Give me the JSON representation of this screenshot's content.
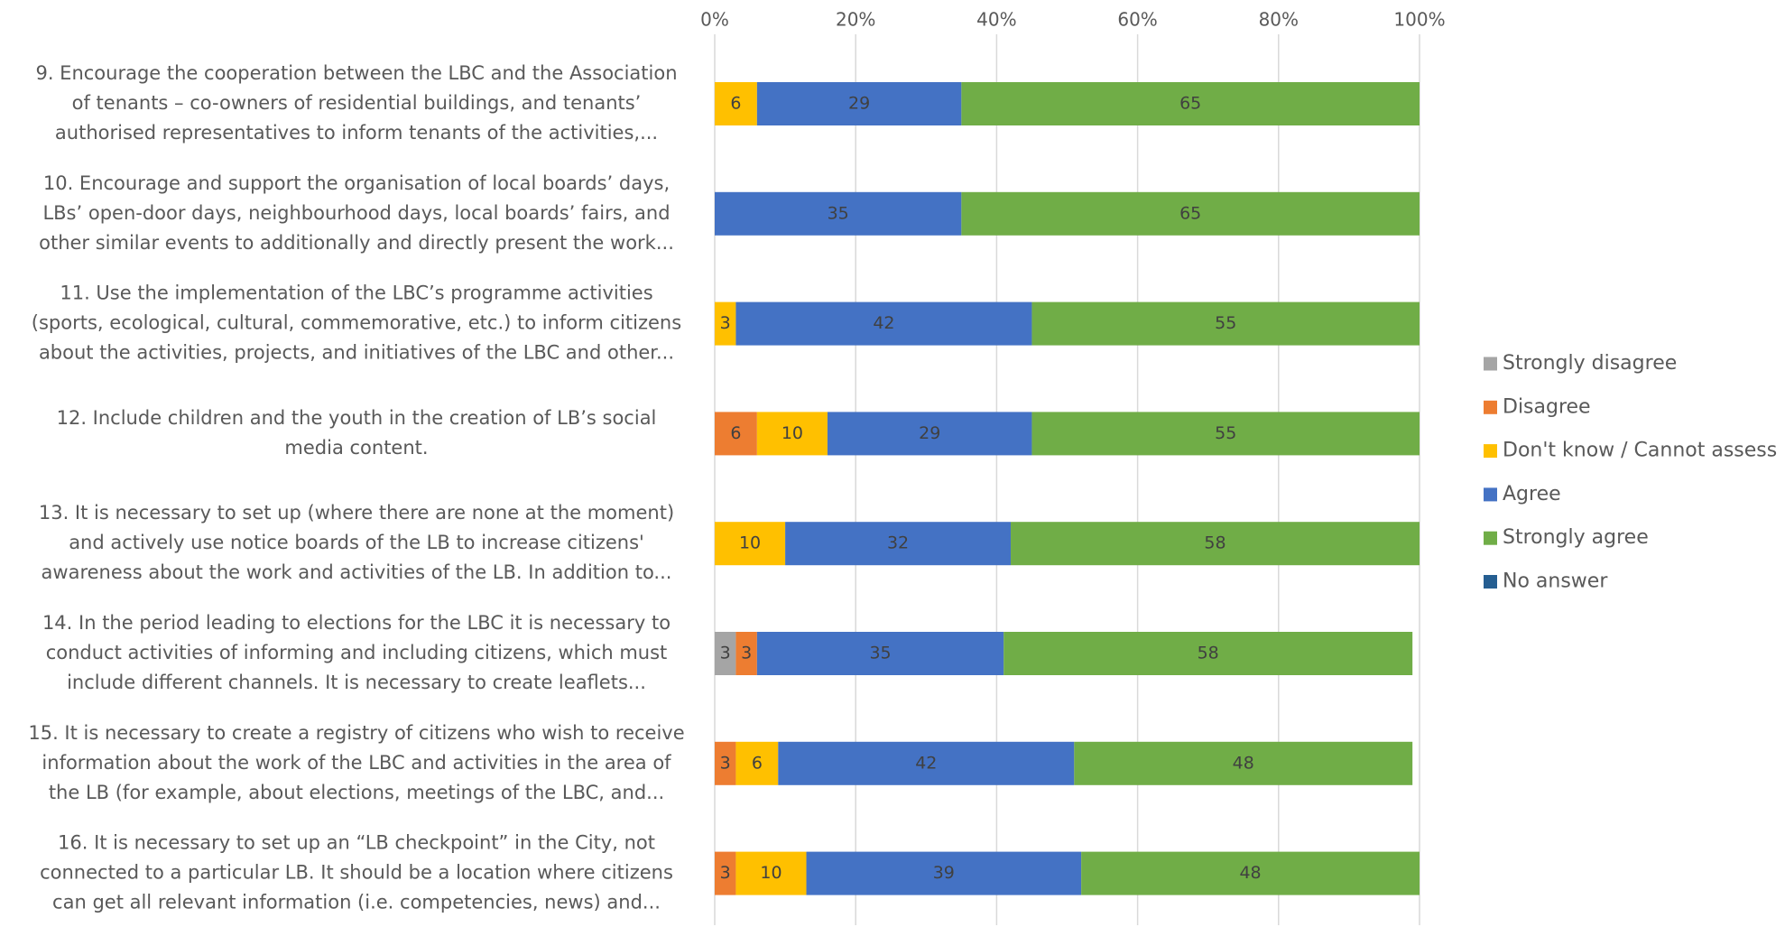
{
  "chart_data": {
    "type": "stacked_barh",
    "categories": [
      [
        "9. Encourage the cooperation between the LBC and the Association",
        "of tenants – co-owners of residential buildings, and tenants’",
        "authorised representatives to inform tenants of the activities,..."
      ],
      [
        "10. Encourage and support the organisation of local boards’ days,",
        "LBs’ open-door days, neighbourhood days, local boards’ fairs, and",
        "other similar events to additionally and directly  present the work..."
      ],
      [
        "11. Use the implementation of the LBC’s programme activities",
        "(sports, ecological, cultural, commemorative, etc.) to inform citizens",
        "about the activities, projects, and initiatives of the LBC and other..."
      ],
      [
        "12. Include children and the youth in the creation of LB’s social",
        "media content."
      ],
      [
        "13. It is necessary to set up (where there are none at the moment)",
        "and actively use notice boards of the LB to increase citizens'",
        "awareness about the work and activities of the LB. In addition to..."
      ],
      [
        "14. In the period leading to elections for the LBC it is necessary to",
        "conduct activities of informing and including citizens, which must",
        "include different channels. It is necessary to create leaflets..."
      ],
      [
        "15. It is necessary to create a registry of citizens who wish to receive",
        "information about the work of the LBC and activities in the area of",
        "the LB (for example, about elections, meetings of the LBC, and..."
      ],
      [
        "16. It is necessary to set up an “LB checkpoint” in the City, not",
        "connected to a particular LB. It should be a location where citizens",
        "can get all relevant information  (i.e. competencies, news) and..."
      ]
    ],
    "series": [
      {
        "name": "Strongly disagree",
        "color": "#a5a5a5",
        "values": [
          null,
          null,
          null,
          null,
          null,
          3,
          null,
          null
        ]
      },
      {
        "name": "Disagree",
        "color": "#ed7d31",
        "values": [
          null,
          null,
          null,
          6,
          null,
          3,
          3,
          3
        ]
      },
      {
        "name": "Don't know / Cannot assess",
        "color": "#ffc000",
        "values": [
          6,
          null,
          3,
          10,
          10,
          null,
          6,
          10
        ]
      },
      {
        "name": "Agree",
        "color": "#4472c4",
        "values": [
          29,
          35,
          42,
          29,
          32,
          35,
          42,
          39
        ]
      },
      {
        "name": "Strongly agree",
        "color": "#70ad47",
        "values": [
          65,
          65,
          55,
          55,
          58,
          58,
          48,
          48
        ]
      },
      {
        "name": "No answer",
        "color": "#255e91",
        "values": [
          null,
          null,
          null,
          null,
          null,
          null,
          null,
          null
        ]
      }
    ],
    "xlim": [
      0,
      100
    ],
    "xticks": [
      {
        "value": 0,
        "label": "0%"
      },
      {
        "value": 20,
        "label": "20%"
      },
      {
        "value": 40,
        "label": "40%"
      },
      {
        "value": 60,
        "label": "60%"
      },
      {
        "value": 80,
        "label": "80%"
      },
      {
        "value": 100,
        "label": "100%"
      }
    ],
    "grid": true,
    "legend": "right"
  }
}
